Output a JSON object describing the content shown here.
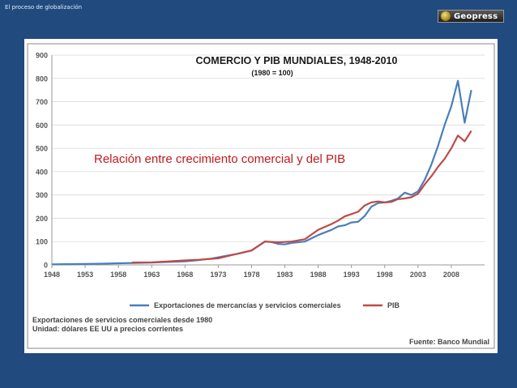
{
  "slide": {
    "title": "El proceso de globalización",
    "logo_text": "Geopress",
    "logo_icon": "globe-icon"
  },
  "annotation": "Relación entre crecimiento comercial y del PIB",
  "colors": {
    "background": "#214a7e",
    "exports": "#4a7ebb",
    "gdp": "#be4b48",
    "annotation": "#c0191f"
  },
  "chart_data": {
    "type": "line",
    "title": "COMERCIO Y PIB MUNDIALES, 1948-2010",
    "subtitle": "(1980 = 100)",
    "xlabel": "",
    "ylabel": "",
    "xlim": [
      1948,
      2010
    ],
    "ylim": [
      0,
      900
    ],
    "x_ticks": [
      "1948",
      "1953",
      "1958",
      "1963",
      "1968",
      "1973",
      "1978",
      "1983",
      "1988",
      "1993",
      "1998",
      "2003",
      "2008"
    ],
    "y_ticks": [
      "0",
      "100",
      "200",
      "300",
      "400",
      "500",
      "600",
      "700",
      "800",
      "900"
    ],
    "grid": true,
    "legend_position": "bottom",
    "series": [
      {
        "name": "Exportaciones de mercancías y servicios comerciales",
        "color": "#4a7ebb",
        "points": [
          [
            1948,
            2
          ],
          [
            1950,
            3
          ],
          [
            1953,
            4
          ],
          [
            1955,
            5
          ],
          [
            1958,
            7
          ],
          [
            1960,
            8
          ],
          [
            1963,
            10
          ],
          [
            1965,
            12
          ],
          [
            1968,
            15
          ],
          [
            1970,
            20
          ],
          [
            1972,
            27
          ],
          [
            1974,
            38
          ],
          [
            1976,
            48
          ],
          [
            1978,
            62
          ],
          [
            1980,
            100
          ],
          [
            1981,
            98
          ],
          [
            1982,
            90
          ],
          [
            1983,
            88
          ],
          [
            1984,
            94
          ],
          [
            1986,
            100
          ],
          [
            1988,
            128
          ],
          [
            1990,
            150
          ],
          [
            1991,
            165
          ],
          [
            1992,
            170
          ],
          [
            1993,
            182
          ],
          [
            1994,
            185
          ],
          [
            1995,
            210
          ],
          [
            1996,
            250
          ],
          [
            1997,
            265
          ],
          [
            1998,
            268
          ],
          [
            1999,
            275
          ],
          [
            2000,
            285
          ],
          [
            2001,
            310
          ],
          [
            2002,
            300
          ],
          [
            2003,
            315
          ],
          [
            2004,
            365
          ],
          [
            2005,
            430
          ],
          [
            2006,
            510
          ],
          [
            2007,
            600
          ],
          [
            2008,
            680
          ],
          [
            2009,
            790
          ],
          [
            2010,
            610
          ],
          [
            2011,
            750
          ]
        ]
      },
      {
        "name": "PIB",
        "color": "#be4b48",
        "points": [
          [
            1960,
            10
          ],
          [
            1963,
            11
          ],
          [
            1965,
            14
          ],
          [
            1968,
            19
          ],
          [
            1970,
            22
          ],
          [
            1973,
            28
          ],
          [
            1975,
            42
          ],
          [
            1978,
            62
          ],
          [
            1980,
            100
          ],
          [
            1982,
            97
          ],
          [
            1984,
            100
          ],
          [
            1986,
            110
          ],
          [
            1988,
            150
          ],
          [
            1990,
            175
          ],
          [
            1991,
            190
          ],
          [
            1992,
            208
          ],
          [
            1993,
            218
          ],
          [
            1994,
            228
          ],
          [
            1995,
            255
          ],
          [
            1996,
            268
          ],
          [
            1997,
            272
          ],
          [
            1998,
            268
          ],
          [
            1999,
            270
          ],
          [
            2000,
            282
          ],
          [
            2001,
            285
          ],
          [
            2002,
            290
          ],
          [
            2003,
            305
          ],
          [
            2004,
            345
          ],
          [
            2005,
            380
          ],
          [
            2006,
            420
          ],
          [
            2007,
            455
          ],
          [
            2008,
            500
          ],
          [
            2009,
            555
          ],
          [
            2010,
            530
          ],
          [
            2011,
            575
          ]
        ]
      }
    ],
    "source": "Fuente: Banco Mundial",
    "notes": [
      "Exportaciones de servicios comerciales desde 1980",
      "Unidad: dólares EE UU a precios corrientes"
    ]
  }
}
